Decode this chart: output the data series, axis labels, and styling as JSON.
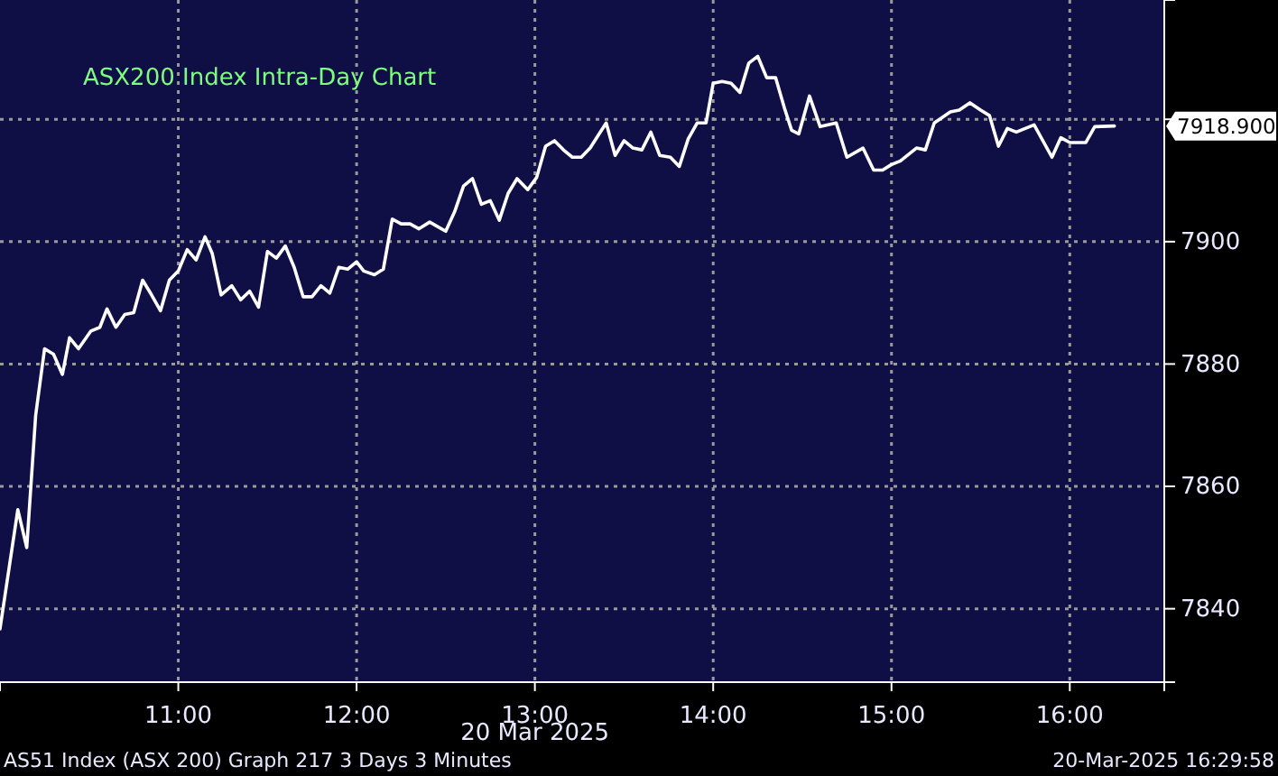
{
  "chart_data": {
    "type": "line",
    "title": "ASX200 Index Intra-Day Chart",
    "xlabel": "20 Mar 2025",
    "x": [
      10.0,
      10.1,
      10.15,
      10.2,
      10.25,
      10.3,
      10.35,
      10.39,
      10.44,
      10.51,
      10.56,
      10.6,
      10.65,
      10.7,
      10.75,
      10.8,
      10.85,
      10.9,
      10.95,
      11.0,
      11.05,
      11.1,
      11.15,
      11.19,
      11.24,
      11.3,
      11.35,
      11.4,
      11.45,
      11.5,
      11.55,
      11.6,
      11.65,
      11.7,
      11.75,
      11.8,
      11.85,
      11.9,
      11.95,
      12.0,
      12.04,
      12.1,
      12.15,
      12.2,
      12.25,
      12.3,
      12.35,
      12.41,
      12.5,
      12.55,
      12.6,
      12.65,
      12.7,
      12.75,
      12.8,
      12.85,
      12.9,
      12.96,
      13.01,
      13.06,
      13.11,
      13.16,
      13.21,
      13.26,
      13.31,
      13.36,
      13.4,
      13.45,
      13.5,
      13.55,
      13.6,
      13.65,
      13.7,
      13.76,
      13.81,
      13.86,
      13.91,
      13.96,
      14.0,
      14.05,
      14.1,
      14.15,
      14.2,
      14.25,
      14.3,
      14.35,
      14.4,
      14.44,
      14.48,
      14.54,
      14.6,
      14.69,
      14.75,
      14.84,
      14.9,
      14.95,
      15.0,
      15.05,
      15.14,
      15.19,
      15.24,
      15.33,
      15.38,
      15.44,
      15.5,
      15.55,
      15.6,
      15.65,
      15.7,
      15.8,
      15.9,
      15.95,
      16.0,
      16.09,
      16.14,
      16.25
    ],
    "series": [
      {
        "color": "#ffffff",
        "values": [
          7836.7,
          7856.2,
          7850.0,
          7871.6,
          7882.5,
          7881.6,
          7878.3,
          7884.3,
          7882.5,
          7885.4,
          7886.0,
          7889.0,
          7886.0,
          7888.1,
          7888.4,
          7893.7,
          7891.3,
          7888.7,
          7893.7,
          7895.2,
          7898.7,
          7897.0,
          7900.8,
          7898.1,
          7891.3,
          7892.8,
          7890.5,
          7891.9,
          7889.3,
          7898.4,
          7897.3,
          7899.3,
          7895.8,
          7891.0,
          7891.0,
          7892.8,
          7891.6,
          7895.8,
          7895.5,
          7896.7,
          7895.2,
          7894.6,
          7895.5,
          7903.7,
          7902.9,
          7902.9,
          7902.1,
          7903.2,
          7901.7,
          7904.9,
          7909.1,
          7910.3,
          7906.1,
          7906.7,
          7903.5,
          7907.9,
          7910.3,
          7908.5,
          7910.5,
          7915.6,
          7916.5,
          7915.0,
          7913.8,
          7913.8,
          7915.3,
          7917.6,
          7919.4,
          7914.1,
          7916.5,
          7915.3,
          7915.0,
          7917.9,
          7914.1,
          7913.8,
          7912.3,
          7916.8,
          7919.4,
          7919.4,
          7925.9,
          7926.2,
          7925.9,
          7924.4,
          7929.2,
          7930.3,
          7926.8,
          7926.8,
          7921.8,
          7918.2,
          7917.6,
          7923.8,
          7918.8,
          7919.4,
          7913.8,
          7915.3,
          7911.7,
          7911.7,
          7912.6,
          7913.2,
          7915.3,
          7915.0,
          7919.4,
          7921.2,
          7921.5,
          7922.7,
          7921.5,
          7920.6,
          7915.6,
          7918.5,
          7917.9,
          7919.1,
          7913.8,
          7917.0,
          7916.2,
          7916.2,
          7918.8,
          7918.9
        ]
      }
    ],
    "xlim": [
      10,
      16.53
    ],
    "ylim": [
      7828,
      7939.5
    ],
    "xticks": [
      {
        "value": 11,
        "label": "11:00"
      },
      {
        "value": 12,
        "label": "12:00"
      },
      {
        "value": 13,
        "label": "13:00"
      },
      {
        "value": 14,
        "label": "14:00"
      },
      {
        "value": 15,
        "label": "15:00"
      },
      {
        "value": 16,
        "label": "16:00"
      }
    ],
    "yticks": [
      7840,
      7860,
      7880,
      7900,
      {
        "value": 7920,
        "label": null
      }
    ],
    "grid": true,
    "line_style": "solid",
    "marker": "none",
    "annotations": [
      "7918.900",
      "AS51 Index (ASX 200) Graph 217 3 Days 3 Minutes",
      "20-Mar-2025 16:29:58"
    ]
  }
}
